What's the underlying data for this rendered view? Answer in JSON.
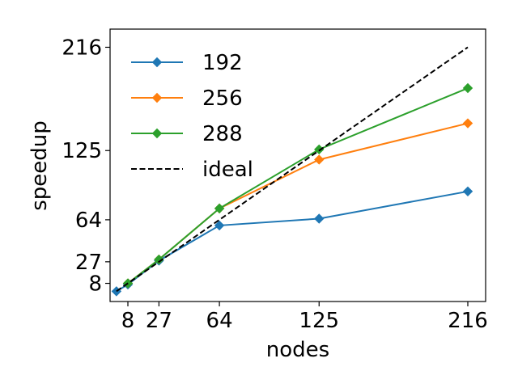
{
  "chart_data": {
    "type": "line",
    "title": "",
    "xlabel": "nodes",
    "ylabel": "speedup",
    "xticks": [
      8,
      27,
      64,
      125,
      216
    ],
    "yticks": [
      8,
      27,
      64,
      125,
      216
    ],
    "xlim": [
      -2.9,
      226.9
    ],
    "ylim": [
      -8.0,
      232.0
    ],
    "grid": false,
    "legend_position": "top-left",
    "series": [
      {
        "name": "192",
        "color": "#1f77b4",
        "marker": "diamond",
        "x": [
          1,
          8,
          27,
          64,
          125,
          216
        ],
        "y": [
          1,
          7,
          28,
          59,
          65,
          89
        ]
      },
      {
        "name": "256",
        "color": "#ff7f0e",
        "marker": "diamond",
        "x": [
          8,
          27,
          64,
          125,
          216
        ],
        "y": [
          8,
          29,
          74,
          117,
          149
        ]
      },
      {
        "name": "288",
        "color": "#2ca02c",
        "marker": "diamond",
        "x": [
          8,
          27,
          64,
          125,
          216
        ],
        "y": [
          8,
          29,
          74,
          126,
          180
        ]
      },
      {
        "name": "ideal",
        "color": "#000000",
        "dashed": true,
        "x": [
          1,
          216
        ],
        "y": [
          1,
          216
        ]
      }
    ]
  }
}
